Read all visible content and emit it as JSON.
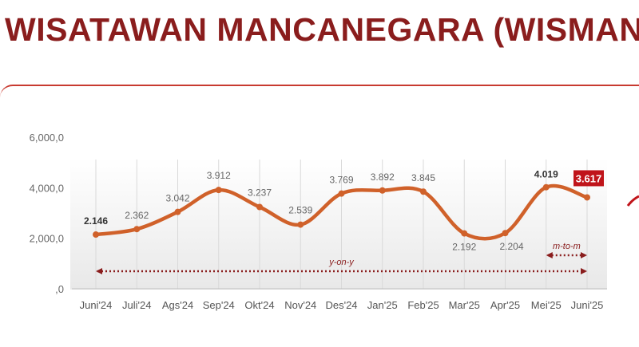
{
  "title": "WISATAWAN MANCANEGARA (WISMAN)",
  "colors": {
    "title": "#8a1d1d",
    "line": "#d0612a",
    "highlight": "#c0141a",
    "arrow": "#8a1d1d"
  },
  "chart_data": {
    "type": "line",
    "categories": [
      "Juni'24",
      "Juli'24",
      "Ags'24",
      "Sep'24",
      "Okt'24",
      "Nov'24",
      "Des'24",
      "Jan'25",
      "Feb'25",
      "Mar'25",
      "Apr'25",
      "Mei'25",
      "Juni'25"
    ],
    "values": [
      2146,
      2362,
      3042,
      3912,
      3237,
      2539,
      3769,
      3892,
      3845,
      2192,
      2204,
      4019,
      3617
    ],
    "data_labels": [
      "2.146",
      "2.362",
      "3.042",
      "3.912",
      "3.237",
      "2.539",
      "3.769",
      "3.892",
      "3.845",
      "2.192",
      "2.204",
      "4.019",
      "3.617"
    ],
    "y_ticks": [
      0,
      2000,
      4000,
      6000
    ],
    "y_tick_labels": [
      ",0",
      "2,000,0",
      "4,000,0",
      "6,000,0"
    ],
    "ylim": [
      0,
      6000
    ],
    "grid": "vertical",
    "highlight_label_index": 12,
    "annotations": [
      {
        "text": "y-on-y",
        "from": 0,
        "to": 12
      },
      {
        "text": "m-to-m",
        "from": 11,
        "to": 12
      }
    ]
  }
}
